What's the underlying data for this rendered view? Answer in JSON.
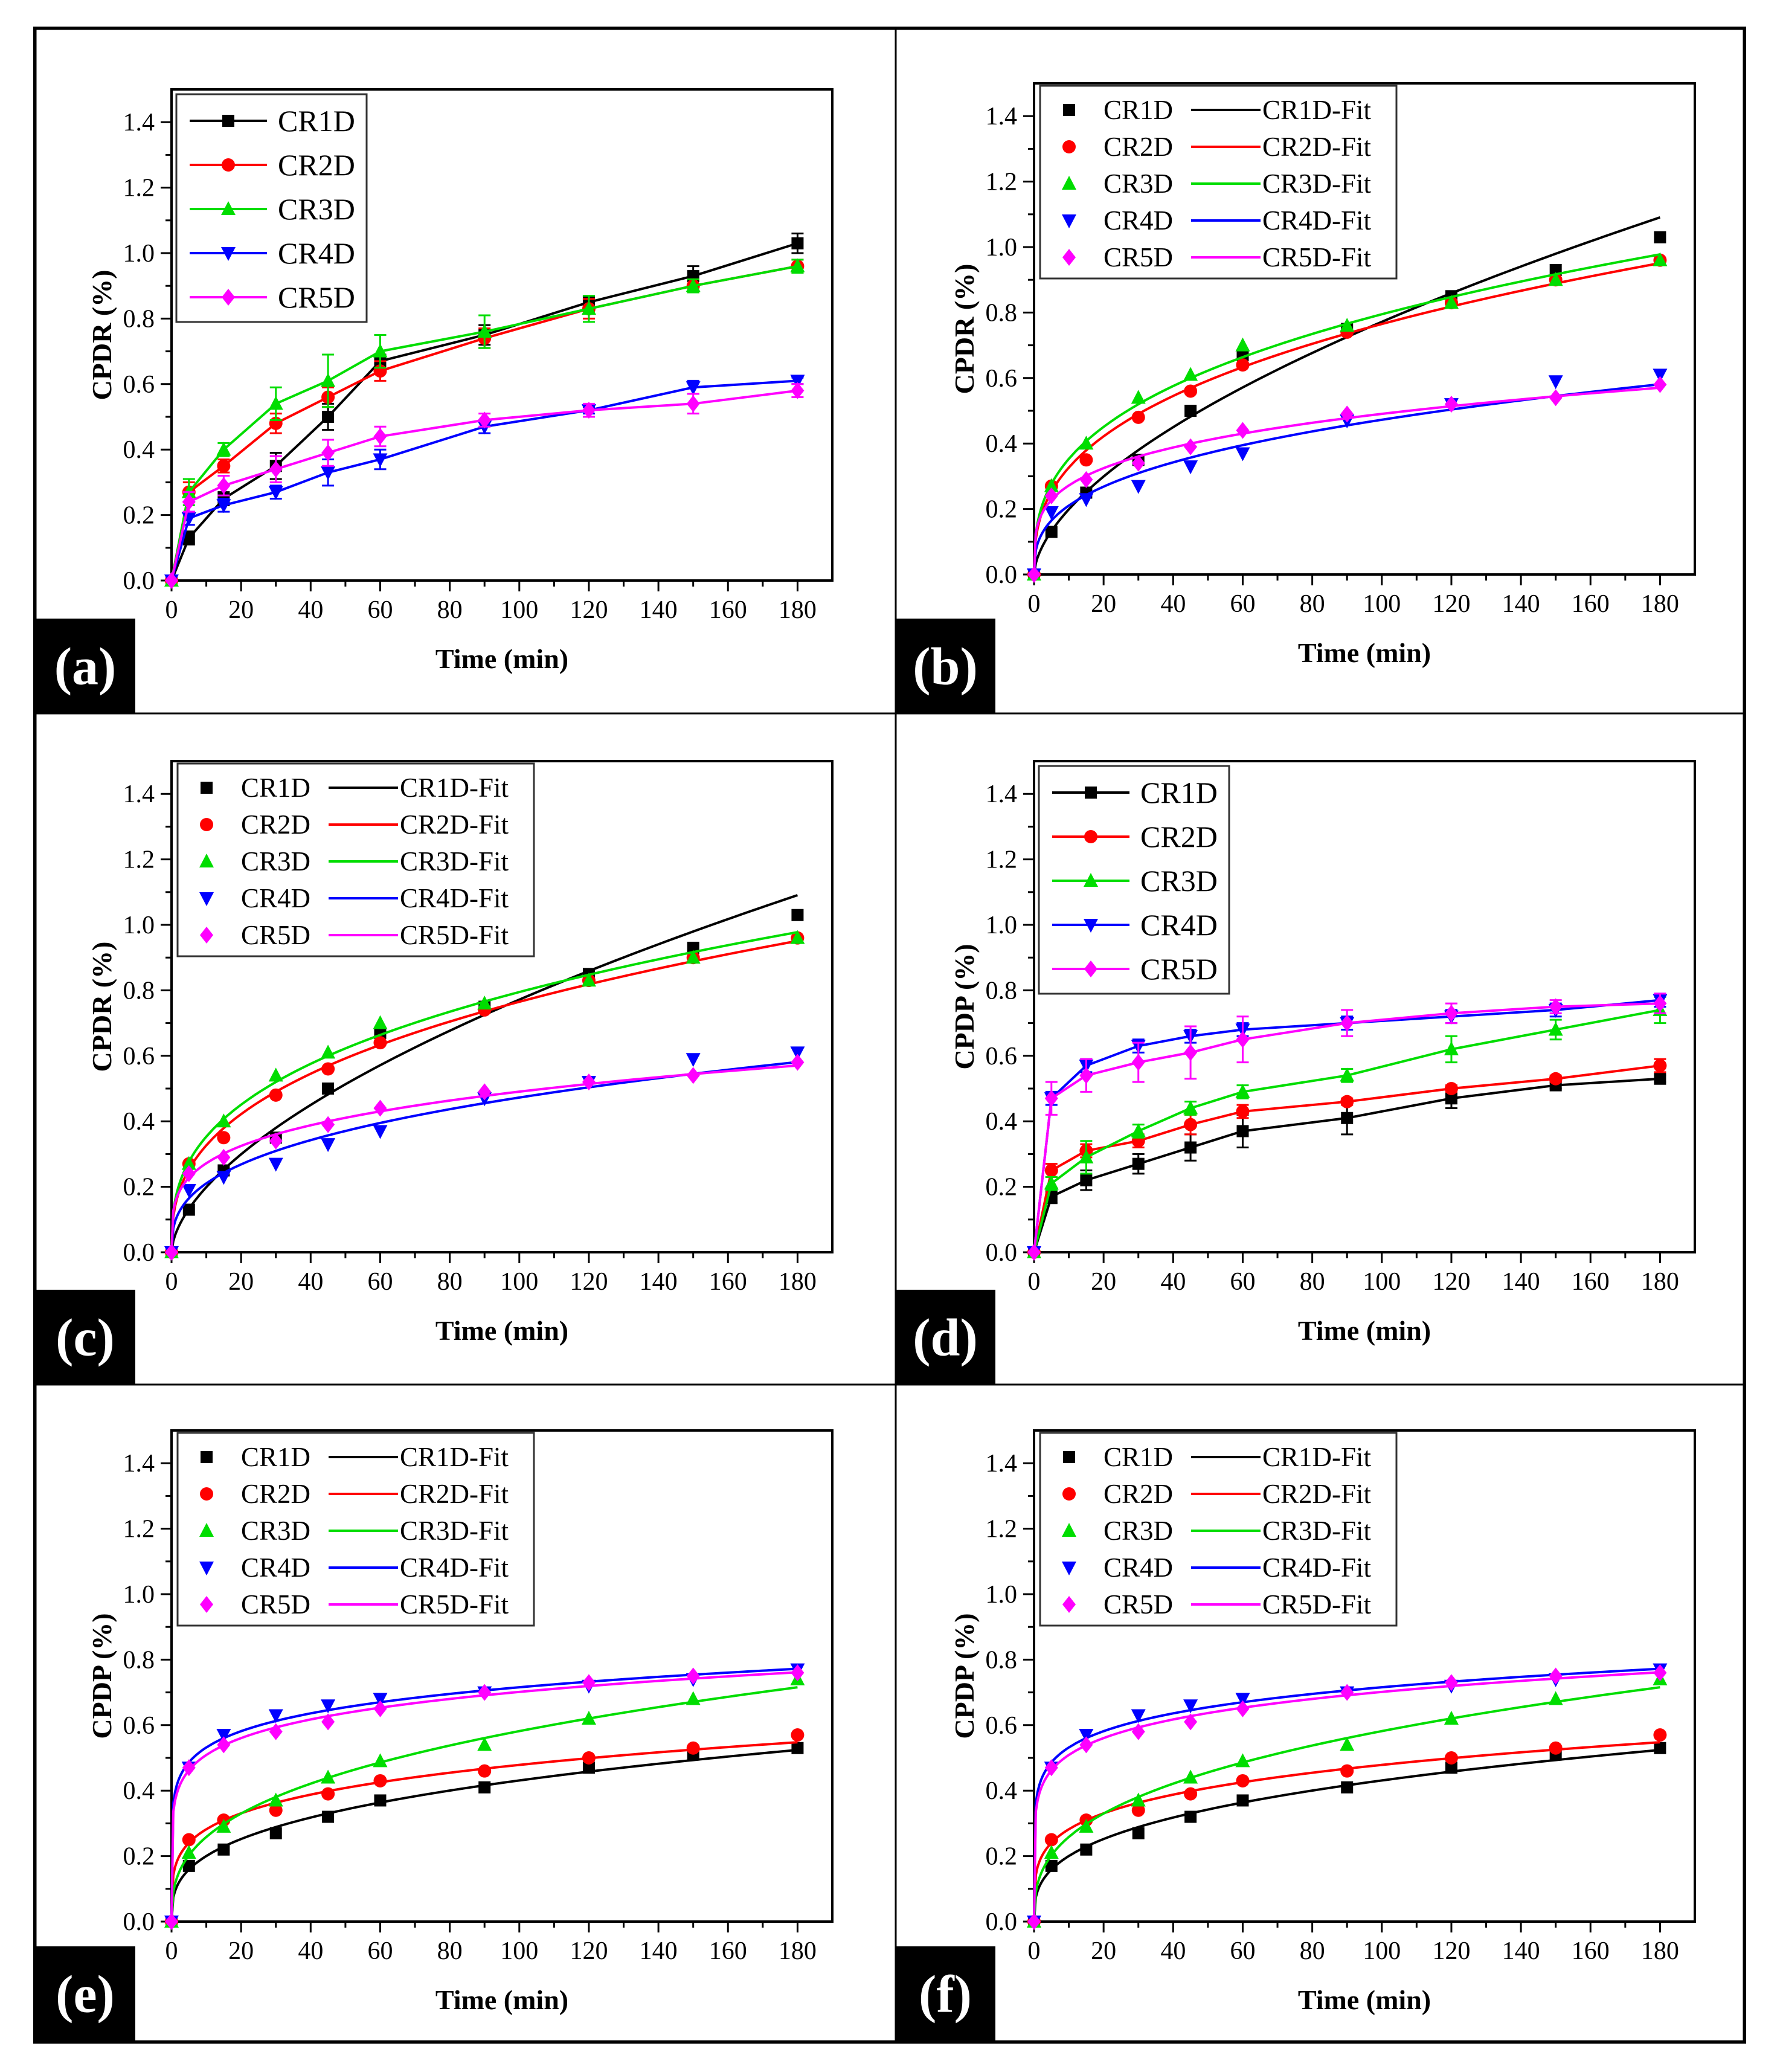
{
  "colors": {
    "CR1D": "#000000",
    "CR2D": "#ff0000",
    "CR3D": "#00dd00",
    "CR4D": "#0000ff",
    "CR5D": "#ff00ff"
  },
  "markers": {
    "CR1D": "square",
    "CR2D": "circle",
    "CR3D": "triangle-up",
    "CR4D": "triangle-down",
    "CR5D": "diamond"
  },
  "chart_data": [
    {
      "panel_label": "(a)",
      "type": "line",
      "xlabel": "Time (min)",
      "ylabel": "CPDR (%)",
      "xlim": [
        0,
        190
      ],
      "ylim": [
        0,
        1.5
      ],
      "xticks": [
        "0",
        "20",
        "40",
        "60",
        "80",
        "100",
        "120",
        "140",
        "160",
        "180"
      ],
      "yticks": [
        "0.0",
        "0.2",
        "0.4",
        "0.6",
        "0.8",
        "1.0",
        "1.2",
        "1.4"
      ],
      "legend": "top-left",
      "legend_style": "line-marker",
      "fit": false,
      "x": [
        0,
        5,
        15,
        30,
        45,
        60,
        90,
        120,
        150,
        180
      ],
      "series": [
        {
          "name": "CR1D",
          "values": [
            0,
            0.13,
            0.25,
            0.35,
            0.5,
            0.67,
            0.75,
            0.85,
            0.93,
            1.03
          ],
          "errors": [
            0,
            0.02,
            0.02,
            0.04,
            0.04,
            0.02,
            0.03,
            0.02,
            0.03,
            0.03
          ]
        },
        {
          "name": "CR2D",
          "values": [
            0,
            0.27,
            0.35,
            0.48,
            0.56,
            0.64,
            0.74,
            0.83,
            0.9,
            0.96
          ],
          "errors": [
            0,
            0.03,
            0.02,
            0.03,
            0.03,
            0.03,
            0.03,
            0.03,
            0.02,
            0.02
          ]
        },
        {
          "name": "CR3D",
          "values": [
            0,
            0.27,
            0.4,
            0.54,
            0.61,
            0.7,
            0.76,
            0.83,
            0.9,
            0.96
          ],
          "errors": [
            0,
            0.04,
            0.02,
            0.05,
            0.08,
            0.05,
            0.05,
            0.04,
            0.02,
            0.02
          ]
        },
        {
          "name": "CR4D",
          "values": [
            0,
            0.19,
            0.23,
            0.27,
            0.33,
            0.37,
            0.47,
            0.52,
            0.59,
            0.61
          ],
          "errors": [
            0,
            0.02,
            0.02,
            0.02,
            0.04,
            0.03,
            0.02,
            0.01,
            0.02,
            0.01
          ]
        },
        {
          "name": "CR5D",
          "values": [
            0,
            0.24,
            0.29,
            0.34,
            0.39,
            0.44,
            0.49,
            0.52,
            0.54,
            0.58
          ],
          "errors": [
            0,
            0.03,
            0.03,
            0.04,
            0.04,
            0.03,
            0.02,
            0.02,
            0.03,
            0.02
          ]
        }
      ]
    },
    {
      "panel_label": "(b)",
      "type": "scatter",
      "xlabel": "Time (min)",
      "ylabel": "CPDR (%)",
      "xlim": [
        0,
        190
      ],
      "ylim": [
        0,
        1.5
      ],
      "xticks": [
        "0",
        "20",
        "40",
        "60",
        "80",
        "100",
        "120",
        "140",
        "160",
        "180"
      ],
      "yticks": [
        "0.0",
        "0.2",
        "0.4",
        "0.6",
        "0.8",
        "1.0",
        "1.2",
        "1.4"
      ],
      "legend": "top-left",
      "legend_style": "marker-fit",
      "fit": true,
      "x": [
        0,
        5,
        15,
        30,
        45,
        60,
        90,
        120,
        150,
        180
      ],
      "series": [
        {
          "name": "CR1D",
          "fit_name": "CR1D-Fit",
          "values": [
            0,
            0.13,
            0.25,
            0.35,
            0.5,
            0.67,
            0.75,
            0.85,
            0.93,
            1.03
          ]
        },
        {
          "name": "CR2D",
          "fit_name": "CR2D-Fit",
          "values": [
            0,
            0.27,
            0.35,
            0.48,
            0.56,
            0.64,
            0.74,
            0.83,
            0.9,
            0.96
          ]
        },
        {
          "name": "CR3D",
          "fit_name": "CR3D-Fit",
          "values": [
            0,
            0.27,
            0.4,
            0.54,
            0.61,
            0.7,
            0.76,
            0.83,
            0.9,
            0.96
          ]
        },
        {
          "name": "CR4D",
          "fit_name": "CR4D-Fit",
          "values": [
            0,
            0.19,
            0.23,
            0.27,
            0.33,
            0.37,
            0.47,
            0.52,
            0.59,
            0.61
          ]
        },
        {
          "name": "CR5D",
          "fit_name": "CR5D-Fit",
          "values": [
            0,
            0.24,
            0.29,
            0.34,
            0.39,
            0.44,
            0.49,
            0.52,
            0.54,
            0.58
          ]
        }
      ]
    },
    {
      "panel_label": "(c)",
      "type": "scatter",
      "xlabel": "Time (min)",
      "ylabel": "CPDR (%)",
      "xlim": [
        0,
        190
      ],
      "ylim": [
        0,
        1.5
      ],
      "xticks": [
        "0",
        "20",
        "40",
        "60",
        "80",
        "100",
        "120",
        "140",
        "160",
        "180"
      ],
      "yticks": [
        "0.0",
        "0.2",
        "0.4",
        "0.6",
        "0.8",
        "1.0",
        "1.2",
        "1.4"
      ],
      "legend": "top-left",
      "legend_style": "marker-fit",
      "fit": true,
      "x": [
        0,
        5,
        15,
        30,
        45,
        60,
        90,
        120,
        150,
        180
      ],
      "series": [
        {
          "name": "CR1D",
          "fit_name": "CR1D-Fit",
          "values": [
            0,
            0.13,
            0.25,
            0.35,
            0.5,
            0.67,
            0.75,
            0.85,
            0.93,
            1.03
          ]
        },
        {
          "name": "CR2D",
          "fit_name": "CR2D-Fit",
          "values": [
            0,
            0.27,
            0.35,
            0.48,
            0.56,
            0.64,
            0.74,
            0.83,
            0.9,
            0.96
          ]
        },
        {
          "name": "CR3D",
          "fit_name": "CR3D-Fit",
          "values": [
            0,
            0.27,
            0.4,
            0.54,
            0.61,
            0.7,
            0.76,
            0.83,
            0.9,
            0.96
          ]
        },
        {
          "name": "CR4D",
          "fit_name": "CR4D-Fit",
          "values": [
            0,
            0.19,
            0.23,
            0.27,
            0.33,
            0.37,
            0.47,
            0.52,
            0.59,
            0.61
          ]
        },
        {
          "name": "CR5D",
          "fit_name": "CR5D-Fit",
          "values": [
            0,
            0.24,
            0.29,
            0.34,
            0.39,
            0.44,
            0.49,
            0.52,
            0.54,
            0.58
          ]
        }
      ]
    },
    {
      "panel_label": "(d)",
      "type": "line",
      "xlabel": "Time (min)",
      "ylabel": "CPDP (%)",
      "xlim": [
        0,
        190
      ],
      "ylim": [
        0,
        1.5
      ],
      "xticks": [
        "0",
        "20",
        "40",
        "60",
        "80",
        "100",
        "120",
        "140",
        "160",
        "180"
      ],
      "yticks": [
        "0.0",
        "0.2",
        "0.4",
        "0.6",
        "0.8",
        "1.0",
        "1.2",
        "1.4"
      ],
      "legend": "top-left",
      "legend_style": "line-marker",
      "fit": false,
      "x": [
        0,
        5,
        15,
        30,
        45,
        60,
        90,
        120,
        150,
        180
      ],
      "series": [
        {
          "name": "CR1D",
          "values": [
            0,
            0.17,
            0.22,
            0.27,
            0.32,
            0.37,
            0.41,
            0.47,
            0.51,
            0.53
          ],
          "errors": [
            0,
            0.02,
            0.03,
            0.03,
            0.04,
            0.05,
            0.05,
            0.03,
            0.01,
            0.01
          ]
        },
        {
          "name": "CR2D",
          "values": [
            0,
            0.25,
            0.31,
            0.34,
            0.39,
            0.43,
            0.46,
            0.5,
            0.53,
            0.57
          ],
          "errors": [
            0,
            0.02,
            0.02,
            0.02,
            0.03,
            0.02,
            0.01,
            0.01,
            0.01,
            0.02
          ]
        },
        {
          "name": "CR3D",
          "values": [
            0,
            0.21,
            0.29,
            0.37,
            0.44,
            0.49,
            0.54,
            0.62,
            0.68,
            0.74
          ],
          "errors": [
            0,
            0.02,
            0.05,
            0.02,
            0.02,
            0.02,
            0.02,
            0.04,
            0.03,
            0.04
          ]
        },
        {
          "name": "CR4D",
          "values": [
            0,
            0.47,
            0.57,
            0.63,
            0.66,
            0.68,
            0.7,
            0.72,
            0.74,
            0.77
          ],
          "errors": [
            0,
            0.02,
            0.02,
            0.02,
            0.02,
            0.02,
            0.02,
            0.02,
            0.02,
            0.02
          ]
        },
        {
          "name": "CR5D",
          "values": [
            0,
            0.47,
            0.54,
            0.58,
            0.61,
            0.65,
            0.7,
            0.73,
            0.75,
            0.76
          ],
          "errors": [
            0,
            0.05,
            0.05,
            0.06,
            0.08,
            0.07,
            0.04,
            0.03,
            0.02,
            0.03
          ]
        }
      ]
    },
    {
      "panel_label": "(e)",
      "type": "scatter",
      "xlabel": "Time (min)",
      "ylabel": "CPDP (%)",
      "xlim": [
        0,
        190
      ],
      "ylim": [
        0,
        1.5
      ],
      "xticks": [
        "0",
        "20",
        "40",
        "60",
        "80",
        "100",
        "120",
        "140",
        "160",
        "180"
      ],
      "yticks": [
        "0.0",
        "0.2",
        "0.4",
        "0.6",
        "0.8",
        "1.0",
        "1.2",
        "1.4"
      ],
      "legend": "top-left",
      "legend_style": "marker-fit",
      "fit": true,
      "x": [
        0,
        5,
        15,
        30,
        45,
        60,
        90,
        120,
        150,
        180
      ],
      "series": [
        {
          "name": "CR1D",
          "fit_name": "CR1D-Fit",
          "values": [
            0,
            0.17,
            0.22,
            0.27,
            0.32,
            0.37,
            0.41,
            0.47,
            0.51,
            0.53
          ]
        },
        {
          "name": "CR2D",
          "fit_name": "CR2D-Fit",
          "values": [
            0,
            0.25,
            0.31,
            0.34,
            0.39,
            0.43,
            0.46,
            0.5,
            0.53,
            0.57
          ]
        },
        {
          "name": "CR3D",
          "fit_name": "CR3D-Fit",
          "values": [
            0,
            0.21,
            0.29,
            0.37,
            0.44,
            0.49,
            0.54,
            0.62,
            0.68,
            0.74
          ]
        },
        {
          "name": "CR4D",
          "fit_name": "CR4D-Fit",
          "values": [
            0,
            0.47,
            0.57,
            0.63,
            0.66,
            0.68,
            0.7,
            0.72,
            0.74,
            0.77
          ]
        },
        {
          "name": "CR5D",
          "fit_name": "CR5D-Fit",
          "values": [
            0,
            0.47,
            0.54,
            0.58,
            0.61,
            0.65,
            0.7,
            0.73,
            0.75,
            0.76
          ]
        }
      ]
    },
    {
      "panel_label": "(f)",
      "type": "scatter",
      "xlabel": "Time (min)",
      "ylabel": "CPDP (%)",
      "xlim": [
        0,
        190
      ],
      "ylim": [
        0,
        1.5
      ],
      "xticks": [
        "0",
        "20",
        "40",
        "60",
        "80",
        "100",
        "120",
        "140",
        "160",
        "180"
      ],
      "yticks": [
        "0.0",
        "0.2",
        "0.4",
        "0.6",
        "0.8",
        "1.0",
        "1.2",
        "1.4"
      ],
      "legend": "top-left",
      "legend_style": "marker-fit",
      "fit": true,
      "x": [
        0,
        5,
        15,
        30,
        45,
        60,
        90,
        120,
        150,
        180
      ],
      "series": [
        {
          "name": "CR1D",
          "fit_name": "CR1D-Fit",
          "values": [
            0,
            0.17,
            0.22,
            0.27,
            0.32,
            0.37,
            0.41,
            0.47,
            0.51,
            0.53
          ]
        },
        {
          "name": "CR2D",
          "fit_name": "CR2D-Fit",
          "values": [
            0,
            0.25,
            0.31,
            0.34,
            0.39,
            0.43,
            0.46,
            0.5,
            0.53,
            0.57
          ]
        },
        {
          "name": "CR3D",
          "fit_name": "CR3D-Fit",
          "values": [
            0,
            0.21,
            0.29,
            0.37,
            0.44,
            0.49,
            0.54,
            0.62,
            0.68,
            0.74
          ]
        },
        {
          "name": "CR4D",
          "fit_name": "CR4D-Fit",
          "values": [
            0,
            0.47,
            0.57,
            0.63,
            0.66,
            0.68,
            0.7,
            0.72,
            0.74,
            0.77
          ]
        },
        {
          "name": "CR5D",
          "fit_name": "CR5D-Fit",
          "values": [
            0,
            0.47,
            0.54,
            0.58,
            0.61,
            0.65,
            0.7,
            0.73,
            0.75,
            0.76
          ]
        }
      ]
    }
  ]
}
